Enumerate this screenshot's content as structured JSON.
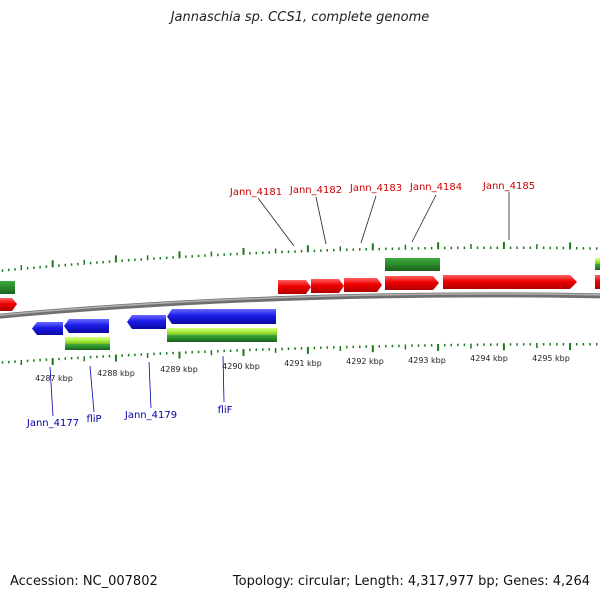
{
  "title": "Jannaschia sp. CCS1, complete genome",
  "footer": {
    "accession": "Accession: NC_007802",
    "summary": "Topology: circular; Length: 4,317,977 bp; Genes: 4,264"
  },
  "colors": {
    "forward_gene": "#e80000",
    "reverse_gene": "#1414e0",
    "cds_dark": "#2a8a2a",
    "cds_light": "#aaf040",
    "tick": "#1a7a1a",
    "backbone": "#8a8a8a",
    "label_forward": "#cc0000",
    "label_reverse": "#0000aa"
  },
  "forward_gene_labels": [
    "Jann_4181",
    "Jann_4182",
    "Jann_4183",
    "Jann_4184",
    "Jann_4185"
  ],
  "reverse_gene_labels": [
    "Jann_4177",
    "fliP",
    "Jann_4179",
    "fliF"
  ],
  "kbp_labels": [
    "4287 kbp",
    "4288 kbp",
    "4289 kbp",
    "4290 kbp",
    "4291 kbp",
    "4292 kbp",
    "4293 kbp",
    "4294 kbp",
    "4295 kbp"
  ]
}
